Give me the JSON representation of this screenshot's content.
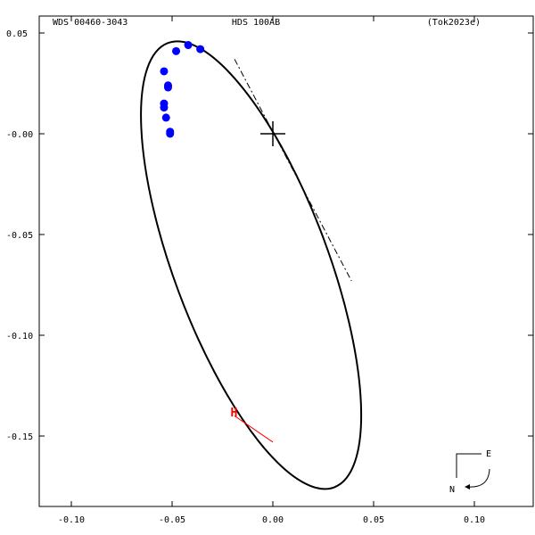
{
  "header": {
    "left": "WDS 00460-3043",
    "center": "HDS 100AB",
    "right": "(Tok2023e)"
  },
  "chart_data": {
    "type": "scatter",
    "title": "",
    "xlabel": "",
    "ylabel": "",
    "xlim": [
      -0.13,
      0.13
    ],
    "ylim": [
      -0.19,
      0.06
    ],
    "x_ticks": [
      {
        "value": -0.1,
        "label": "-0.10"
      },
      {
        "value": -0.05,
        "label": "-0.05"
      },
      {
        "value": 0.0,
        "label": "0.00"
      },
      {
        "value": 0.05,
        "label": "0.05"
      },
      {
        "value": 0.1,
        "label": "0.10"
      }
    ],
    "y_ticks": [
      {
        "value": 0.05,
        "label": "0.05"
      },
      {
        "value": 0.0,
        "label": "-0.00"
      },
      {
        "value": -0.05,
        "label": "-0.05"
      },
      {
        "value": -0.1,
        "label": "-0.10"
      },
      {
        "value": -0.15,
        "label": "-0.15"
      }
    ],
    "primary_star": {
      "x": 0.0,
      "y": 0.0
    },
    "orbit": {
      "center": [
        -0.0108,
        -0.0652
      ],
      "semi_major": 0.1177,
      "semi_minor": 0.0383,
      "rotation_deg": -69.5
    },
    "line_of_nodes": [
      [
        -0.019,
        0.037
      ],
      [
        0.039,
        -0.073
      ]
    ],
    "observations": {
      "color": "#0000ff",
      "points": [
        {
          "x": -0.054,
          "y": 0.031
        },
        {
          "x": -0.048,
          "y": 0.041
        },
        {
          "x": -0.042,
          "y": 0.044
        },
        {
          "x": -0.036,
          "y": 0.042
        },
        {
          "x": -0.052,
          "y": 0.024
        },
        {
          "x": -0.052,
          "y": 0.023
        },
        {
          "x": -0.054,
          "y": 0.015
        },
        {
          "x": -0.054,
          "y": 0.013
        },
        {
          "x": -0.053,
          "y": 0.008
        },
        {
          "x": -0.051,
          "y": 0.001
        },
        {
          "x": -0.051,
          "y": 0.0
        }
      ]
    },
    "h_marker": {
      "label": "H",
      "color": "#ff0000",
      "text_at": {
        "x": -0.021,
        "y": -0.138
      },
      "line_from": {
        "x": -0.019,
        "y": -0.14
      },
      "line_to": {
        "x": 0.0,
        "y": -0.153
      }
    },
    "compass": {
      "east": "E",
      "north": "N"
    }
  }
}
